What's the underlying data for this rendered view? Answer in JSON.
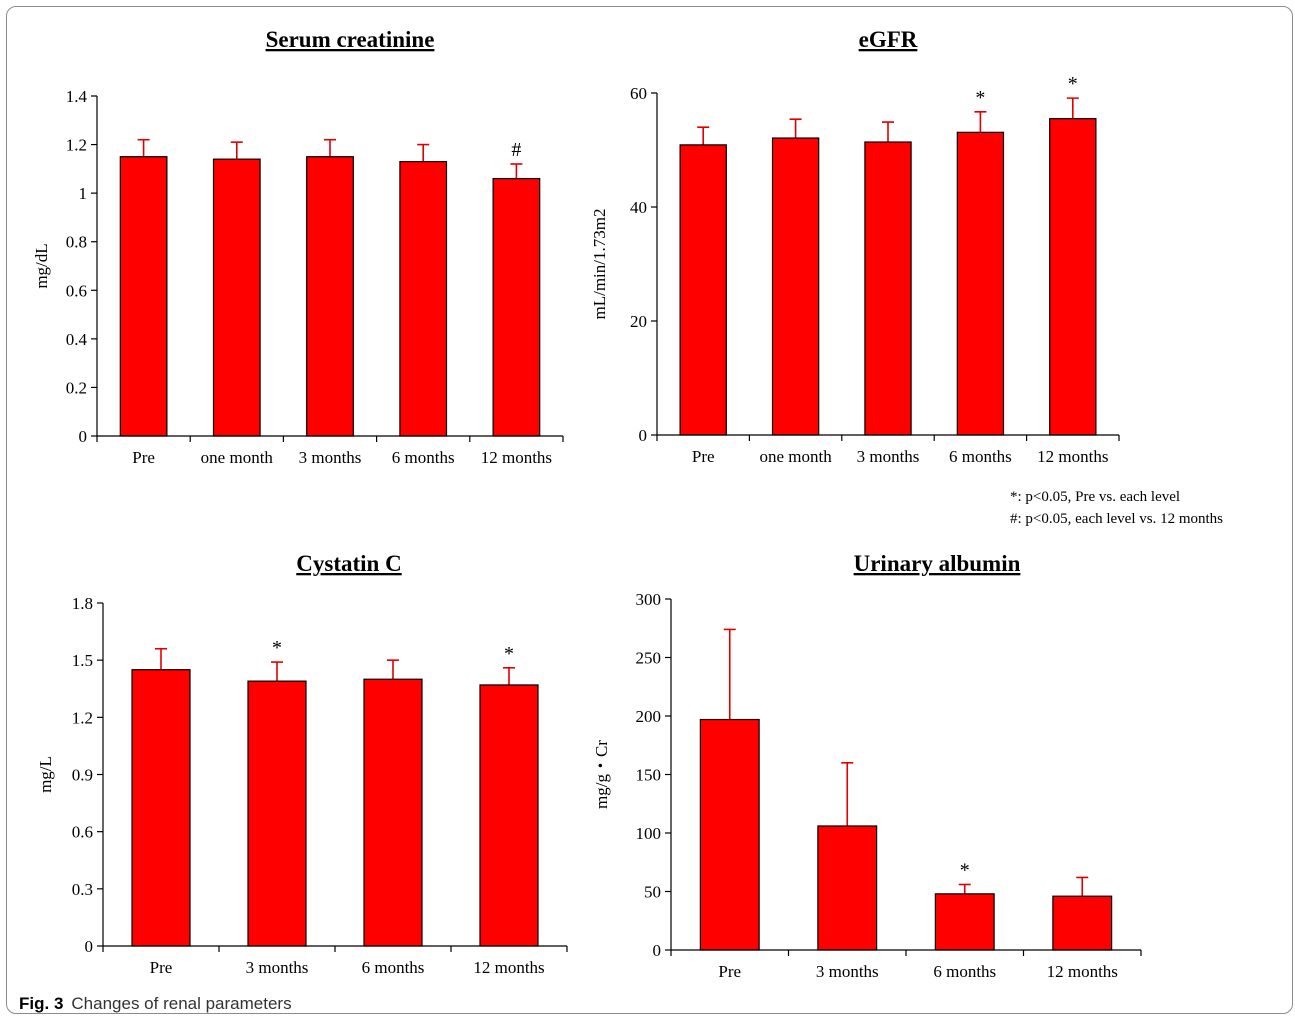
{
  "caption": {
    "label": "Fig. 3",
    "text": "Changes of renal parameters"
  },
  "legend_notes": [
    "*: p<0.05, Pre vs. each level",
    "#: p<0.05,  each level vs. 12 months"
  ],
  "colors": {
    "bar": "#ff0000",
    "error": "#e00000",
    "axis": "#000000"
  },
  "chart_data": [
    {
      "type": "bar",
      "title": "Serum creatinine",
      "ylabel": "mg/dL",
      "categories": [
        "Pre",
        "one month",
        "3 months",
        "6 months",
        "12 months"
      ],
      "values": [
        1.15,
        1.14,
        1.15,
        1.13,
        1.06
      ],
      "errors": [
        0.07,
        0.07,
        0.07,
        0.07,
        0.06
      ],
      "ylim": [
        0,
        1.4
      ],
      "yticks": [
        0,
        0.2,
        0.4,
        0.6,
        0.8,
        1,
        1.2,
        1.4
      ],
      "yticklabels": [
        "0",
        "0.2",
        "0.4",
        "0.6",
        "0.8",
        "1",
        "1.2",
        "1.4"
      ],
      "markers": [
        "",
        "",
        "",
        "",
        "#"
      ]
    },
    {
      "type": "bar",
      "title": "eGFR",
      "ylabel": "mL/min/1.73m2",
      "categories": [
        "Pre",
        "one month",
        "3 months",
        "6 months",
        "12 months"
      ],
      "values": [
        50.9,
        52.1,
        51.4,
        53.1,
        55.5
      ],
      "errors": [
        3.1,
        3.3,
        3.5,
        3.6,
        3.6
      ],
      "ylim": [
        0,
        60
      ],
      "yticks": [
        0,
        20,
        40,
        60
      ],
      "yticklabels": [
        "0",
        "20",
        "40",
        "60"
      ],
      "markers": [
        "",
        "",
        "",
        "*",
        "*"
      ]
    },
    {
      "type": "bar",
      "title": "Cystatin C",
      "ylabel": "mg/L",
      "categories": [
        "Pre",
        "3 months",
        "6 months",
        "12 months"
      ],
      "values": [
        1.45,
        1.39,
        1.4,
        1.37
      ],
      "errors": [
        0.11,
        0.1,
        0.1,
        0.09
      ],
      "ylim": [
        0,
        1.8
      ],
      "yticks": [
        0,
        0.3,
        0.6,
        0.9,
        1.2,
        1.5,
        1.8
      ],
      "yticklabels": [
        "0",
        "0.3",
        "0.6",
        "0.9",
        "1.2",
        "1.5",
        "1.8"
      ],
      "markers": [
        "",
        "*",
        "",
        "*"
      ]
    },
    {
      "type": "bar",
      "title": "Urinary albumin",
      "ylabel": "mg/g・Cr",
      "categories": [
        "Pre",
        "3 months",
        "6 months",
        "12 months"
      ],
      "values": [
        197,
        106,
        48,
        46
      ],
      "errors": [
        77,
        54,
        8,
        16
      ],
      "ylim": [
        0,
        300
      ],
      "yticks": [
        0,
        50,
        100,
        150,
        200,
        250,
        300
      ],
      "yticklabels": [
        "0",
        "50",
        "100",
        "150",
        "200",
        "250",
        "300"
      ],
      "markers": [
        "",
        "",
        "*",
        ""
      ]
    }
  ]
}
